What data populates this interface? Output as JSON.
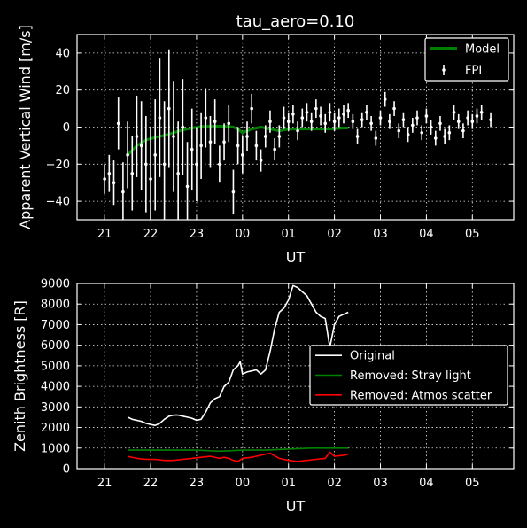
{
  "chart_data": [
    {
      "type": "scatter",
      "title": "tau_aero=0.10",
      "xlabel": "UT",
      "ylabel": "Apparent Vertical Wind [m/s]",
      "xlim": [
        20.4,
        29.9
      ],
      "ylim": [
        -50,
        50
      ],
      "xticks": [
        21,
        22,
        23,
        24,
        25,
        26,
        27,
        28,
        29
      ],
      "xticklabels": [
        "21",
        "22",
        "23",
        "00",
        "01",
        "02",
        "03",
        "04",
        "05"
      ],
      "yticks": [
        -40,
        -20,
        0,
        20,
        40
      ],
      "grid": true,
      "legend_position": "top-right",
      "series": [
        {
          "name": "Model",
          "kind": "line",
          "color": "#008000",
          "x": [
            21.5,
            21.7,
            21.9,
            22.1,
            22.3,
            22.5,
            22.7,
            22.9,
            23.1,
            23.3,
            23.5,
            23.7,
            23.8,
            23.9,
            24.0,
            24.2,
            24.4,
            24.6,
            24.8,
            25.0,
            25.3,
            25.6,
            25.9,
            26.2,
            26.3
          ],
          "y": [
            -15,
            -10,
            -7,
            -5.5,
            -4.5,
            -3,
            -1.5,
            -0.5,
            0.3,
            0.5,
            0.5,
            0.3,
            0,
            -1,
            -3,
            -1,
            0,
            -1,
            -2,
            -1,
            -1,
            -1,
            -1,
            -0.5,
            -0.5
          ]
        },
        {
          "name": "FPI",
          "kind": "errorbar",
          "color": "#ffffff",
          "x": [
            21.0,
            21.1,
            21.2,
            21.3,
            21.4,
            21.5,
            21.6,
            21.7,
            21.8,
            21.9,
            22.0,
            22.1,
            22.2,
            22.3,
            22.4,
            22.5,
            22.6,
            22.7,
            22.8,
            22.9,
            23.0,
            23.1,
            23.2,
            23.3,
            23.4,
            23.5,
            23.6,
            23.7,
            23.8,
            23.9,
            24.0,
            24.1,
            24.2,
            24.3,
            24.4,
            24.5,
            24.6,
            24.7,
            24.8,
            24.9,
            25.0,
            25.1,
            25.2,
            25.3,
            25.4,
            25.5,
            25.6,
            25.7,
            25.8,
            25.9,
            26.0,
            26.1,
            26.2,
            26.3,
            26.4,
            26.5,
            26.6,
            26.7,
            26.8,
            26.9,
            27.0,
            27.1,
            27.2,
            27.3,
            27.4,
            27.5,
            27.6,
            27.7,
            27.8,
            27.9,
            28.0,
            28.1,
            28.2,
            28.3,
            28.4,
            28.5,
            28.6,
            28.7,
            28.8,
            28.9,
            29.0,
            29.1,
            29.2,
            29.4
          ],
          "y": [
            -28,
            -25,
            -30,
            2,
            -35,
            -15,
            -25,
            -5,
            -10,
            -20,
            -28,
            -15,
            5,
            -20,
            10,
            -5,
            -25,
            0,
            -32,
            -12,
            -20,
            -10,
            5,
            -8,
            3,
            -20,
            -8,
            2,
            -35,
            -10,
            -15,
            -5,
            10,
            -10,
            -18,
            -5,
            3,
            -12,
            -5,
            5,
            3,
            7,
            -2,
            5,
            8,
            3,
            10,
            6,
            2,
            8,
            3,
            5,
            7,
            9,
            3,
            -5,
            4,
            8,
            2,
            -6,
            5,
            15,
            3,
            10,
            -2,
            4,
            -4,
            1,
            5,
            -3,
            6,
            0,
            -6,
            2,
            -5,
            -3,
            8,
            3,
            -2,
            5,
            3,
            6,
            8,
            4
          ],
          "err": [
            8,
            10,
            12,
            14,
            16,
            18,
            20,
            22,
            24,
            26,
            28,
            30,
            32,
            34,
            32,
            30,
            28,
            26,
            24,
            22,
            20,
            18,
            16,
            14,
            12,
            10,
            10,
            10,
            12,
            10,
            10,
            8,
            8,
            8,
            6,
            6,
            6,
            6,
            6,
            6,
            5,
            5,
            5,
            5,
            5,
            5,
            5,
            5,
            5,
            5,
            5,
            5,
            5,
            4,
            4,
            4,
            4,
            4,
            4,
            4,
            4,
            4,
            4,
            4,
            4,
            4,
            4,
            4,
            4,
            4,
            4,
            4,
            4,
            4,
            4,
            4,
            4,
            4,
            4,
            4,
            4,
            4,
            4,
            4
          ]
        }
      ]
    },
    {
      "type": "line",
      "title": "",
      "xlabel": "UT",
      "ylabel": "Zenith Brightness [R]",
      "xlim": [
        20.4,
        29.9
      ],
      "ylim": [
        0,
        9000
      ],
      "xticks": [
        21,
        22,
        23,
        24,
        25,
        26,
        27,
        28,
        29
      ],
      "xticklabels": [
        "21",
        "22",
        "23",
        "00",
        "01",
        "02",
        "03",
        "04",
        "05"
      ],
      "yticks": [
        0,
        1000,
        2000,
        3000,
        4000,
        5000,
        6000,
        7000,
        8000,
        9000
      ],
      "grid": true,
      "legend_position": "center-right",
      "series": [
        {
          "name": "Original",
          "color": "#ffffff",
          "x": [
            21.5,
            21.6,
            21.8,
            21.9,
            22.0,
            22.1,
            22.2,
            22.3,
            22.4,
            22.5,
            22.6,
            22.7,
            22.8,
            22.9,
            23.0,
            23.1,
            23.2,
            23.3,
            23.4,
            23.5,
            23.6,
            23.7,
            23.8,
            23.9,
            23.95,
            24.0,
            24.1,
            24.2,
            24.3,
            24.4,
            24.5,
            24.6,
            24.7,
            24.8,
            24.9,
            25.0,
            25.1,
            25.2,
            25.3,
            25.4,
            25.5,
            25.6,
            25.7,
            25.8,
            25.9,
            26.0,
            26.1,
            26.2,
            26.3
          ],
          "y": [
            2500,
            2400,
            2300,
            2200,
            2150,
            2100,
            2200,
            2400,
            2550,
            2600,
            2600,
            2550,
            2500,
            2450,
            2350,
            2400,
            2750,
            3200,
            3400,
            3500,
            4000,
            4200,
            4800,
            5000,
            5200,
            4600,
            4700,
            4750,
            4800,
            4600,
            4800,
            5700,
            6800,
            7600,
            7800,
            8200,
            8900,
            8800,
            8600,
            8400,
            8000,
            7600,
            7400,
            7300,
            5900,
            7000,
            7400,
            7500,
            7600
          ]
        },
        {
          "name": "Removed: Stray light",
          "color": "#008000",
          "x": [
            21.5,
            22.0,
            22.5,
            23.0,
            23.5,
            24.0,
            24.5,
            25.0,
            25.5,
            26.0,
            26.3
          ],
          "y": [
            900,
            900,
            900,
            900,
            850,
            900,
            900,
            950,
            1000,
            1000,
            1000
          ]
        },
        {
          "name": "Removed: Atmos scatter",
          "color": "#ff0000",
          "x": [
            21.5,
            21.7,
            21.9,
            22.1,
            22.3,
            22.5,
            22.7,
            22.9,
            23.1,
            23.3,
            23.5,
            23.6,
            23.7,
            23.8,
            23.9,
            24.0,
            24.2,
            24.4,
            24.6,
            24.8,
            25.0,
            25.2,
            25.4,
            25.6,
            25.8,
            25.9,
            26.0,
            26.2,
            26.3
          ],
          "y": [
            600,
            500,
            450,
            450,
            400,
            400,
            450,
            500,
            550,
            600,
            500,
            550,
            500,
            400,
            350,
            500,
            550,
            650,
            750,
            500,
            400,
            350,
            400,
            450,
            500,
            800,
            600,
            650,
            700
          ]
        }
      ]
    }
  ]
}
